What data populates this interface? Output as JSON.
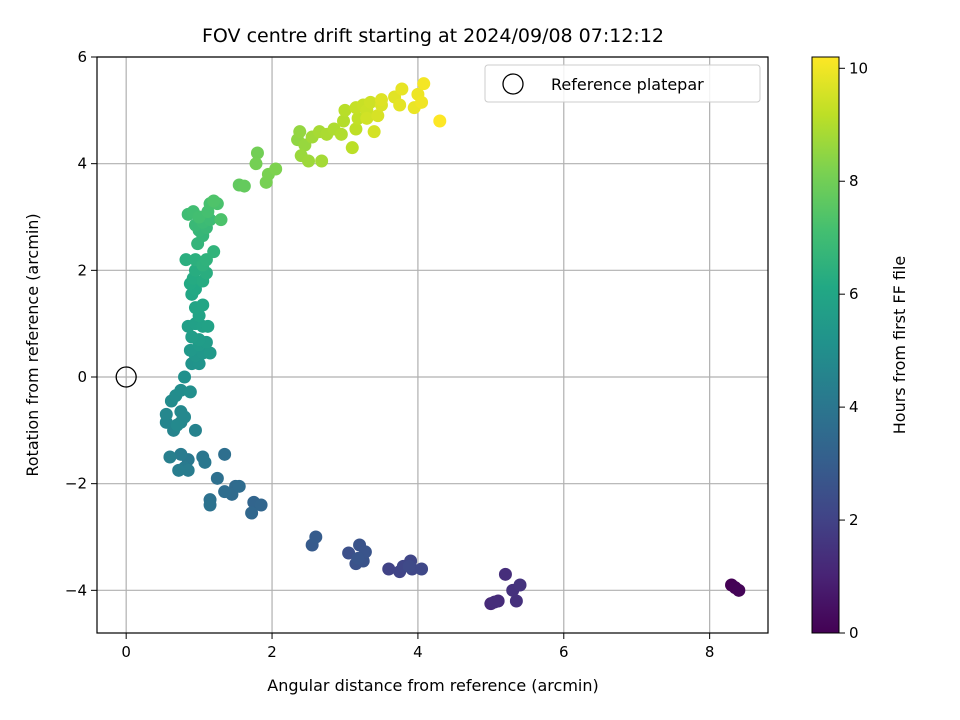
{
  "chart_data": {
    "type": "scatter",
    "title": "FOV centre drift starting at 2024/09/08 07:12:12",
    "xlabel": "Angular distance from reference (arcmin)",
    "ylabel": "Rotation from reference (arcmin)",
    "xlim": [
      -0.4,
      8.8
    ],
    "ylim": [
      -4.8,
      6.0
    ],
    "xticks": [
      0,
      2,
      4,
      6,
      8
    ],
    "yticks": [
      -4,
      -2,
      0,
      2,
      4,
      6
    ],
    "grid": true,
    "legend": {
      "label": "Reference platepar",
      "placement": "upper right"
    },
    "reference_point": {
      "x": 0,
      "y": 0,
      "marker": "open-circle"
    },
    "colorbar": {
      "label": "Hours from first FF file",
      "colormap": "viridis",
      "range": [
        0,
        10.2
      ],
      "ticks": [
        0,
        2,
        4,
        6,
        8,
        10
      ]
    },
    "points": [
      {
        "x": 8.3,
        "y": -3.9,
        "t": 0.0
      },
      {
        "x": 8.35,
        "y": -3.95,
        "t": 0.05
      },
      {
        "x": 8.4,
        "y": -4.0,
        "t": 0.1
      },
      {
        "x": 5.0,
        "y": -4.25,
        "t": 1.2
      },
      {
        "x": 5.1,
        "y": -4.2,
        "t": 1.25
      },
      {
        "x": 5.05,
        "y": -4.22,
        "t": 1.3
      },
      {
        "x": 5.2,
        "y": -3.7,
        "t": 1.35
      },
      {
        "x": 5.35,
        "y": -4.2,
        "t": 1.4
      },
      {
        "x": 5.3,
        "y": -4.0,
        "t": 1.45
      },
      {
        "x": 5.4,
        "y": -3.9,
        "t": 1.5
      },
      {
        "x": 3.6,
        "y": -3.6,
        "t": 2.0
      },
      {
        "x": 3.75,
        "y": -3.65,
        "t": 2.05
      },
      {
        "x": 3.8,
        "y": -3.55,
        "t": 2.1
      },
      {
        "x": 3.9,
        "y": -3.45,
        "t": 2.12
      },
      {
        "x": 3.92,
        "y": -3.6,
        "t": 2.15
      },
      {
        "x": 4.05,
        "y": -3.6,
        "t": 2.2
      },
      {
        "x": 3.88,
        "y": -3.55,
        "t": 2.25
      },
      {
        "x": 3.05,
        "y": -3.3,
        "t": 2.5
      },
      {
        "x": 3.15,
        "y": -3.5,
        "t": 2.55
      },
      {
        "x": 3.2,
        "y": -3.15,
        "t": 2.6
      },
      {
        "x": 3.25,
        "y": -3.45,
        "t": 2.62
      },
      {
        "x": 3.28,
        "y": -3.28,
        "t": 2.65
      },
      {
        "x": 3.18,
        "y": -3.4,
        "t": 2.68
      },
      {
        "x": 2.55,
        "y": -3.15,
        "t": 2.9
      },
      {
        "x": 2.6,
        "y": -3.0,
        "t": 2.95
      },
      {
        "x": 1.75,
        "y": -2.35,
        "t": 3.3
      },
      {
        "x": 1.85,
        "y": -2.4,
        "t": 3.35
      },
      {
        "x": 1.72,
        "y": -2.55,
        "t": 3.4
      },
      {
        "x": 1.5,
        "y": -2.05,
        "t": 3.5
      },
      {
        "x": 1.45,
        "y": -2.2,
        "t": 3.55
      },
      {
        "x": 1.55,
        "y": -2.05,
        "t": 3.6
      },
      {
        "x": 1.35,
        "y": -2.15,
        "t": 3.65
      },
      {
        "x": 1.35,
        "y": -1.45,
        "t": 3.7
      },
      {
        "x": 1.25,
        "y": -1.9,
        "t": 3.75
      },
      {
        "x": 1.15,
        "y": -2.3,
        "t": 3.8
      },
      {
        "x": 1.15,
        "y": -2.4,
        "t": 3.85
      },
      {
        "x": 1.05,
        "y": -1.5,
        "t": 4.0
      },
      {
        "x": 1.08,
        "y": -1.6,
        "t": 4.05
      },
      {
        "x": 0.85,
        "y": -1.55,
        "t": 4.1
      },
      {
        "x": 0.8,
        "y": -1.7,
        "t": 4.15
      },
      {
        "x": 0.75,
        "y": -1.45,
        "t": 4.2
      },
      {
        "x": 0.85,
        "y": -1.75,
        "t": 4.25
      },
      {
        "x": 0.72,
        "y": -1.75,
        "t": 4.3
      },
      {
        "x": 0.6,
        "y": -1.5,
        "t": 4.35
      },
      {
        "x": 0.95,
        "y": -1.0,
        "t": 4.5
      },
      {
        "x": 0.65,
        "y": -1.0,
        "t": 4.55
      },
      {
        "x": 0.55,
        "y": -0.85,
        "t": 4.6
      },
      {
        "x": 0.75,
        "y": -0.85,
        "t": 4.65
      },
      {
        "x": 0.55,
        "y": -0.7,
        "t": 4.7
      },
      {
        "x": 0.75,
        "y": -0.65,
        "t": 4.72
      },
      {
        "x": 0.8,
        "y": -0.75,
        "t": 4.75
      },
      {
        "x": 0.7,
        "y": -0.9,
        "t": 4.78
      },
      {
        "x": 0.62,
        "y": -0.45,
        "t": 4.85
      },
      {
        "x": 0.68,
        "y": -0.35,
        "t": 4.9
      },
      {
        "x": 0.75,
        "y": -0.25,
        "t": 4.95
      },
      {
        "x": 0.88,
        "y": -0.28,
        "t": 5.0
      },
      {
        "x": 0.8,
        "y": 0.0,
        "t": 5.05
      },
      {
        "x": 0.9,
        "y": 0.25,
        "t": 5.2
      },
      {
        "x": 1.0,
        "y": 0.25,
        "t": 5.25
      },
      {
        "x": 0.95,
        "y": 0.4,
        "t": 5.3
      },
      {
        "x": 1.05,
        "y": 0.45,
        "t": 5.35
      },
      {
        "x": 0.88,
        "y": 0.5,
        "t": 5.4
      },
      {
        "x": 1.15,
        "y": 0.45,
        "t": 5.45
      },
      {
        "x": 1.0,
        "y": 0.6,
        "t": 5.5
      },
      {
        "x": 1.1,
        "y": 0.65,
        "t": 5.55
      },
      {
        "x": 1.0,
        "y": 0.7,
        "t": 5.6
      },
      {
        "x": 0.9,
        "y": 0.75,
        "t": 5.65
      },
      {
        "x": 0.85,
        "y": 0.95,
        "t": 5.7
      },
      {
        "x": 0.95,
        "y": 1.0,
        "t": 5.75
      },
      {
        "x": 1.05,
        "y": 0.95,
        "t": 5.8
      },
      {
        "x": 1.12,
        "y": 0.95,
        "t": 5.85
      },
      {
        "x": 1.0,
        "y": 1.15,
        "t": 5.9
      },
      {
        "x": 0.95,
        "y": 1.3,
        "t": 5.95
      },
      {
        "x": 1.05,
        "y": 1.35,
        "t": 6.0
      },
      {
        "x": 0.9,
        "y": 1.55,
        "t": 6.05
      },
      {
        "x": 0.95,
        "y": 1.65,
        "t": 6.1
      },
      {
        "x": 0.88,
        "y": 1.75,
        "t": 6.15
      },
      {
        "x": 0.92,
        "y": 1.85,
        "t": 6.2
      },
      {
        "x": 1.05,
        "y": 1.8,
        "t": 6.25
      },
      {
        "x": 0.95,
        "y": 2.0,
        "t": 6.3
      },
      {
        "x": 1.1,
        "y": 1.95,
        "t": 6.35
      },
      {
        "x": 0.82,
        "y": 2.2,
        "t": 6.4
      },
      {
        "x": 0.95,
        "y": 2.2,
        "t": 6.45
      },
      {
        "x": 1.05,
        "y": 2.1,
        "t": 6.5
      },
      {
        "x": 1.1,
        "y": 2.2,
        "t": 6.55
      },
      {
        "x": 1.2,
        "y": 2.35,
        "t": 6.6
      },
      {
        "x": 0.98,
        "y": 2.5,
        "t": 6.65
      },
      {
        "x": 1.05,
        "y": 2.65,
        "t": 6.7
      },
      {
        "x": 1.0,
        "y": 2.75,
        "t": 6.75
      },
      {
        "x": 1.1,
        "y": 2.8,
        "t": 6.8
      },
      {
        "x": 0.95,
        "y": 2.85,
        "t": 6.85
      },
      {
        "x": 1.05,
        "y": 2.9,
        "t": 6.9
      },
      {
        "x": 1.15,
        "y": 2.95,
        "t": 6.95
      },
      {
        "x": 0.85,
        "y": 3.05,
        "t": 7.0
      },
      {
        "x": 0.92,
        "y": 3.1,
        "t": 7.05
      },
      {
        "x": 1.0,
        "y": 3.0,
        "t": 7.1
      },
      {
        "x": 1.12,
        "y": 3.1,
        "t": 7.15
      },
      {
        "x": 1.15,
        "y": 3.25,
        "t": 7.2
      },
      {
        "x": 1.25,
        "y": 3.25,
        "t": 7.25
      },
      {
        "x": 1.3,
        "y": 2.95,
        "t": 7.3
      },
      {
        "x": 1.2,
        "y": 3.3,
        "t": 7.35
      },
      {
        "x": 1.55,
        "y": 3.6,
        "t": 7.7
      },
      {
        "x": 1.62,
        "y": 3.58,
        "t": 7.75
      },
      {
        "x": 1.8,
        "y": 4.2,
        "t": 8.0
      },
      {
        "x": 1.78,
        "y": 4.0,
        "t": 8.05
      },
      {
        "x": 1.92,
        "y": 3.65,
        "t": 8.1
      },
      {
        "x": 1.95,
        "y": 3.8,
        "t": 8.15
      },
      {
        "x": 2.05,
        "y": 3.9,
        "t": 8.2
      },
      {
        "x": 2.35,
        "y": 4.45,
        "t": 8.5
      },
      {
        "x": 2.38,
        "y": 4.6,
        "t": 8.55
      },
      {
        "x": 2.45,
        "y": 4.35,
        "t": 8.6
      },
      {
        "x": 2.4,
        "y": 4.15,
        "t": 8.65
      },
      {
        "x": 2.5,
        "y": 4.05,
        "t": 8.7
      },
      {
        "x": 2.55,
        "y": 4.5,
        "t": 8.75
      },
      {
        "x": 2.68,
        "y": 4.05,
        "t": 8.8
      },
      {
        "x": 2.65,
        "y": 4.6,
        "t": 8.85
      },
      {
        "x": 2.75,
        "y": 4.55,
        "t": 8.9
      },
      {
        "x": 2.85,
        "y": 4.65,
        "t": 8.95
      },
      {
        "x": 2.95,
        "y": 4.55,
        "t": 9.0
      },
      {
        "x": 2.98,
        "y": 4.8,
        "t": 9.05
      },
      {
        "x": 3.0,
        "y": 5.0,
        "t": 9.1
      },
      {
        "x": 3.1,
        "y": 4.3,
        "t": 9.15
      },
      {
        "x": 3.15,
        "y": 4.65,
        "t": 9.2
      },
      {
        "x": 3.18,
        "y": 4.85,
        "t": 9.25
      },
      {
        "x": 3.15,
        "y": 5.05,
        "t": 9.3
      },
      {
        "x": 3.25,
        "y": 5.1,
        "t": 9.35
      },
      {
        "x": 3.3,
        "y": 5.0,
        "t": 9.4
      },
      {
        "x": 3.35,
        "y": 5.15,
        "t": 9.45
      },
      {
        "x": 3.3,
        "y": 4.85,
        "t": 9.5
      },
      {
        "x": 3.4,
        "y": 4.6,
        "t": 9.55
      },
      {
        "x": 3.45,
        "y": 4.9,
        "t": 9.6
      },
      {
        "x": 3.5,
        "y": 5.1,
        "t": 9.65
      },
      {
        "x": 3.5,
        "y": 5.2,
        "t": 9.7
      },
      {
        "x": 3.68,
        "y": 5.25,
        "t": 9.75
      },
      {
        "x": 3.75,
        "y": 5.1,
        "t": 9.8
      },
      {
        "x": 3.78,
        "y": 5.4,
        "t": 9.85
      },
      {
        "x": 3.95,
        "y": 5.05,
        "t": 9.9
      },
      {
        "x": 4.0,
        "y": 5.3,
        "t": 9.95
      },
      {
        "x": 4.05,
        "y": 5.15,
        "t": 10.0
      },
      {
        "x": 4.08,
        "y": 5.5,
        "t": 10.05
      },
      {
        "x": 4.3,
        "y": 4.8,
        "t": 10.2
      }
    ]
  }
}
